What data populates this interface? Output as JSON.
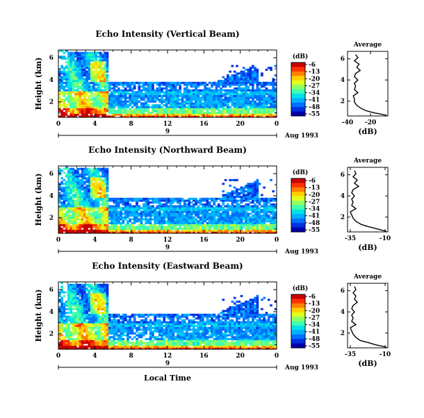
{
  "chart_data": {
    "type": "heatmap",
    "common": {
      "x_ticks": [
        "0",
        "4",
        "8",
        "12",
        "16",
        "20",
        "0"
      ],
      "x_range_hours": [
        0,
        24
      ],
      "date_bar_label": "9",
      "date_label": "Aug 1993",
      "y_ticks": [
        "2",
        "4",
        "6"
      ],
      "ylim_km": [
        0.6,
        6.7
      ],
      "ylabel": "Height (km)",
      "xlabel": "Local Time",
      "colorbar_title": "(dB)",
      "colorbar_ticks": [
        "-6",
        "-13",
        "-20",
        "-27",
        "-34",
        "-41",
        "-48",
        "-55"
      ],
      "colorbar_range_db": [
        -58,
        -3
      ],
      "colormap": [
        "#0000a8",
        "#0030e0",
        "#0070ff",
        "#00b0ff",
        "#00e0e8",
        "#40ffb0",
        "#90ff60",
        "#e0ff20",
        "#ffd000",
        "#ff8000",
        "#ff3000",
        "#c80000"
      ],
      "avg_title": "Average",
      "avg_xlabel": "(dB)"
    },
    "panels": [
      {
        "title": "Echo Intensity (Vertical Beam)",
        "avg_x_ticks": [
          "-40",
          "-20"
        ],
        "avg_xlim": [
          -40,
          -5
        ],
        "avg_profile": [
          [
            6.4,
            -33
          ],
          [
            6.1,
            -31
          ],
          [
            5.8,
            -34
          ],
          [
            5.5,
            -30
          ],
          [
            5.2,
            -32
          ],
          [
            4.9,
            -29
          ],
          [
            4.6,
            -33
          ],
          [
            4.3,
            -34
          ],
          [
            4.0,
            -31
          ],
          [
            3.7,
            -34
          ],
          [
            3.4,
            -33
          ],
          [
            3.1,
            -34
          ],
          [
            2.8,
            -31
          ],
          [
            2.5,
            -35
          ],
          [
            2.2,
            -34
          ],
          [
            1.9,
            -34
          ],
          [
            1.6,
            -32
          ],
          [
            1.3,
            -28
          ],
          [
            1.1,
            -24
          ],
          [
            0.9,
            -17
          ],
          [
            0.75,
            -10
          ],
          [
            0.65,
            -6
          ]
        ]
      },
      {
        "title": "Echo Intensity (Northward Beam)",
        "avg_x_ticks": [
          "-35",
          "-10"
        ],
        "avg_xlim": [
          -37,
          -8
        ],
        "avg_profile": [
          [
            6.4,
            -32
          ],
          [
            6.1,
            -31
          ],
          [
            5.8,
            -33
          ],
          [
            5.5,
            -30
          ],
          [
            5.2,
            -32
          ],
          [
            4.9,
            -29
          ],
          [
            4.6,
            -33
          ],
          [
            4.3,
            -34
          ],
          [
            4.0,
            -32
          ],
          [
            3.7,
            -34
          ],
          [
            3.4,
            -33
          ],
          [
            3.1,
            -34
          ],
          [
            2.8,
            -31
          ],
          [
            2.5,
            -35
          ],
          [
            2.2,
            -34
          ],
          [
            1.9,
            -33
          ],
          [
            1.6,
            -31
          ],
          [
            1.3,
            -27
          ],
          [
            1.1,
            -22
          ],
          [
            0.9,
            -16
          ],
          [
            0.75,
            -12
          ],
          [
            0.65,
            -9
          ]
        ]
      },
      {
        "title": "Echo Intensity (Eastward Beam)",
        "avg_x_ticks": [
          "-35",
          "-10"
        ],
        "avg_xlim": [
          -37,
          -8
        ],
        "avg_profile": [
          [
            6.4,
            -32
          ],
          [
            6.1,
            -31
          ],
          [
            5.8,
            -33
          ],
          [
            5.5,
            -31
          ],
          [
            5.2,
            -32
          ],
          [
            4.9,
            -30
          ],
          [
            4.6,
            -33
          ],
          [
            4.3,
            -34
          ],
          [
            4.0,
            -32
          ],
          [
            3.7,
            -34
          ],
          [
            3.4,
            -33
          ],
          [
            3.1,
            -34
          ],
          [
            2.8,
            -31
          ],
          [
            2.5,
            -35
          ],
          [
            2.2,
            -34
          ],
          [
            1.9,
            -33
          ],
          [
            1.6,
            -31
          ],
          [
            1.3,
            -28
          ],
          [
            1.1,
            -22
          ],
          [
            0.9,
            -17
          ],
          [
            0.75,
            -12
          ],
          [
            0.65,
            -9
          ]
        ]
      }
    ]
  }
}
